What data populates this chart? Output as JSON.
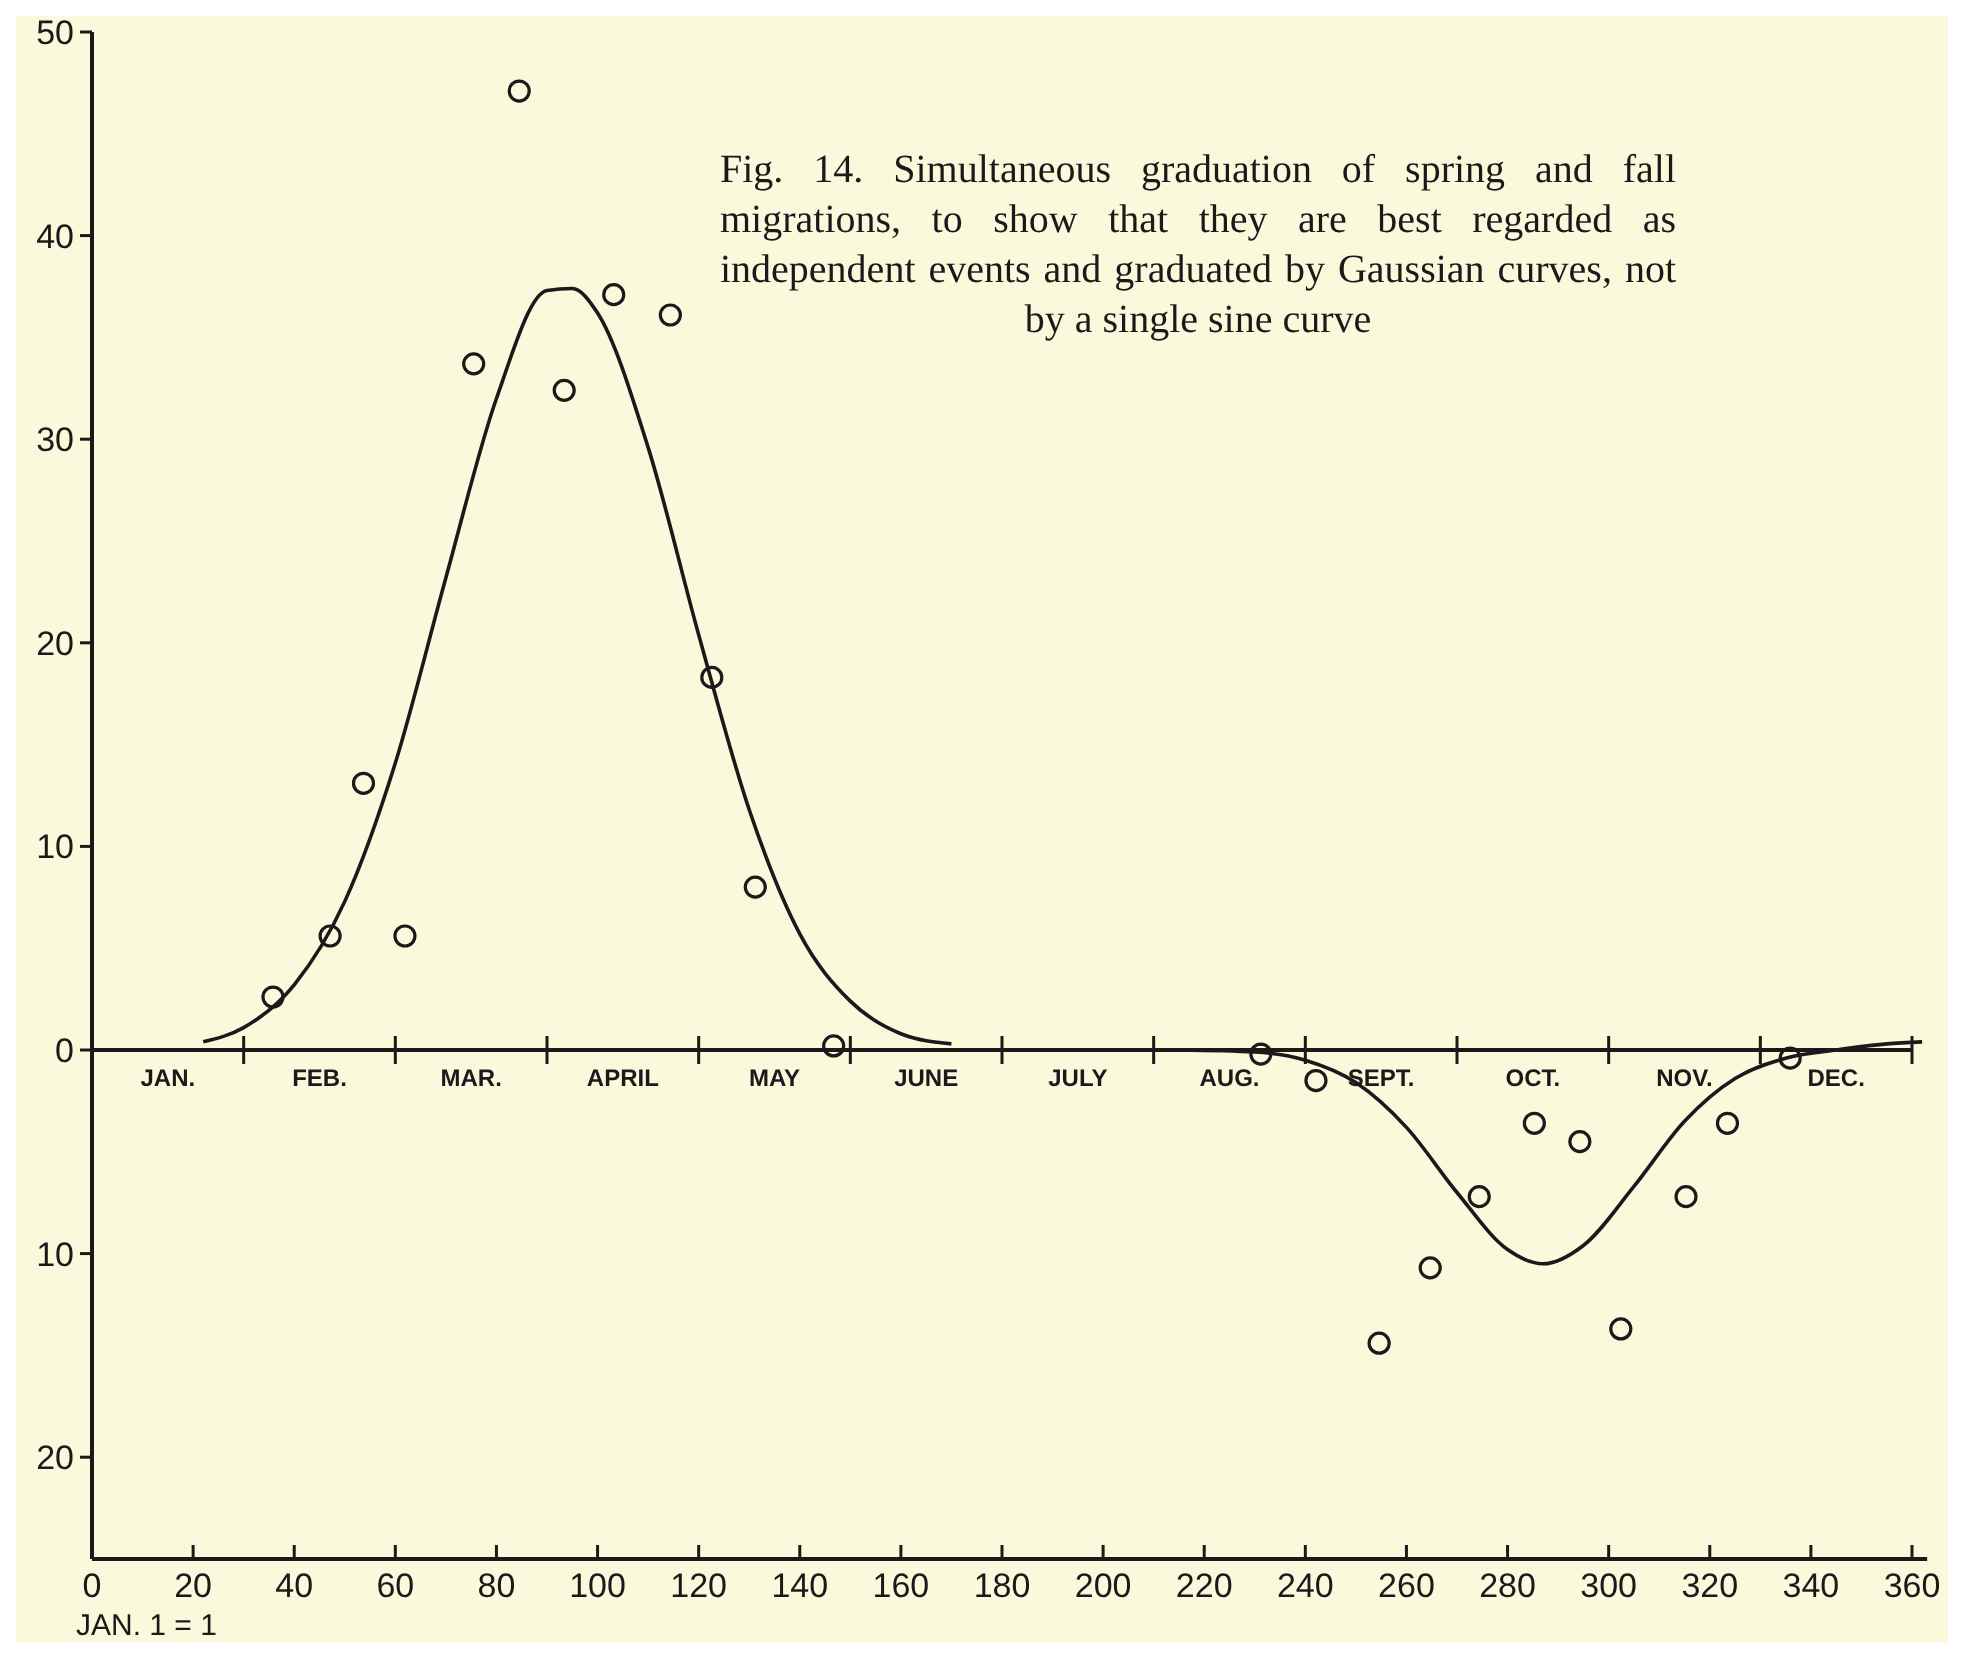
{
  "chart_data": {
    "type": "scatter",
    "title": "Fig. 14. Simultaneous graduation of spring and fall migrations, to show that they are best regarded as independent events and graduated by Gaussian curves, not by a single sine curve",
    "annotations": [
      "JAN. 1 = 1",
      "JAN.",
      "FEB.",
      "MAR.",
      "APRIL",
      "MAY",
      "JUNE",
      "JULY",
      "AUG.",
      "SEPT.",
      "OCT.",
      "NOV.",
      "DEC."
    ],
    "ref_lines": [
      {
        "axis": "y",
        "value": 0
      }
    ],
    "xlim": [
      0,
      363
    ],
    "xticks": [
      0,
      20,
      40,
      60,
      80,
      100,
      120,
      140,
      160,
      180,
      200,
      220,
      240,
      260,
      280,
      300,
      320,
      340,
      360
    ],
    "ylim": [
      -25,
      50
    ],
    "yticks": [
      {
        "value": -20,
        "label": "20"
      },
      {
        "value": -10,
        "label": "10"
      },
      0,
      10,
      20,
      30,
      40,
      50
    ],
    "marker": "circle",
    "series": [
      {
        "color": "#1a1a1a",
        "x": [
          35.8,
          47.1,
          53.7,
          61.9,
          75.5,
          84.5,
          93.4,
          103.2,
          114.4,
          122.6,
          131.2,
          146.7
        ],
        "values": [
          2.6,
          5.6,
          13.1,
          5.6,
          33.7,
          47.1,
          32.4,
          37.1,
          36.1,
          18.3,
          8.0,
          0.2
        ]
      },
      {
        "color": "#1a1a1a",
        "x": [
          231.2,
          242.1,
          254.6,
          264.7,
          274.4,
          285.3,
          294.3,
          302.4,
          315.3,
          323.5,
          335.9
        ],
        "values": [
          -0.2,
          -1.5,
          -14.4,
          -10.7,
          -7.2,
          -3.6,
          -4.5,
          -13.7,
          -7.2,
          -3.6,
          -0.4
        ]
      },
      {
        "type": "line",
        "marker": "none",
        "color": "#1a1a1a",
        "line_style": "solid",
        "x": [
          22,
          30,
          40,
          50,
          60,
          70,
          80,
          90,
          95,
          100,
          110,
          120,
          130,
          140,
          150,
          160,
          170
        ],
        "values": [
          0.4,
          1.1,
          3.2,
          7.3,
          14.1,
          23.2,
          32.0,
          37.3,
          37.4,
          36.2,
          29.6,
          20.4,
          11.8,
          5.7,
          2.4,
          0.8,
          0.3
        ]
      },
      {
        "type": "line",
        "marker": "none",
        "color": "#1a1a1a",
        "line_style": "solid",
        "x": [
          215,
          230,
          240,
          250,
          260,
          270,
          280,
          287,
          295,
          305,
          315,
          325,
          335,
          345,
          355,
          362
        ],
        "values": [
          0,
          -0.1,
          -0.5,
          -1.6,
          -3.8,
          -7.0,
          -9.8,
          -10.5,
          -9.6,
          -6.7,
          -3.5,
          -1.4,
          -0.4,
          0,
          0.3,
          0.4
        ]
      }
    ]
  }
}
